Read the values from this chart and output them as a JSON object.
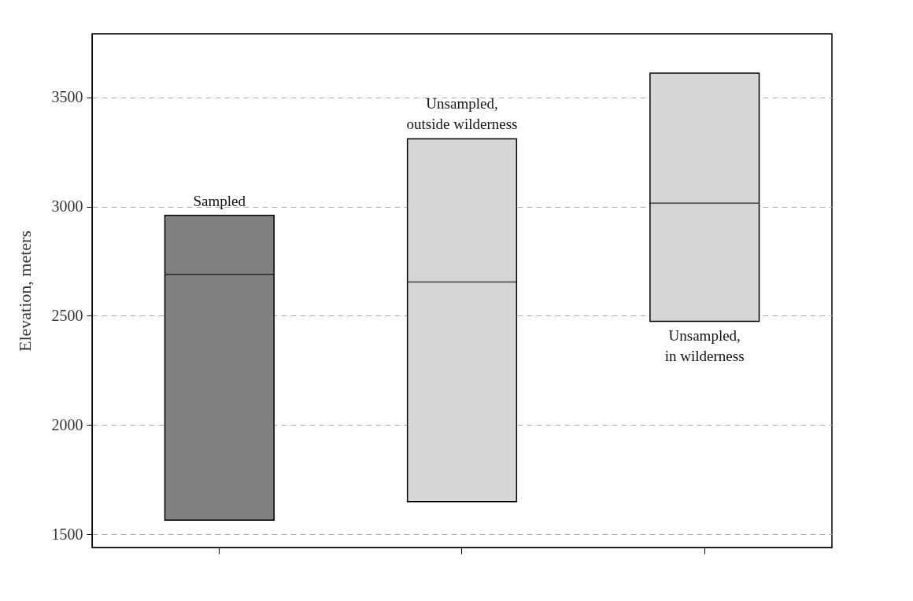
{
  "chart_data": {
    "type": "box",
    "ylabel": "Elevation, meters",
    "categories": [
      null,
      null,
      null
    ],
    "boxes": [
      {
        "low": 1565,
        "q1": 1565,
        "median": 2690,
        "q3": 2960,
        "high": 2960
      },
      {
        "low": 1650,
        "q1": 1650,
        "median": 2655,
        "q3": 3310,
        "high": 3310
      },
      {
        "low": 2475,
        "q1": 2475,
        "median": 3015,
        "q3": 3610,
        "high": 3610
      }
    ],
    "colors": [
      "#808080",
      "#d6d6d6",
      "#d6d6d6"
    ],
    "annotations": [
      "Sampled",
      "Unsampled,\noutside wilderness",
      "Unsampled,\nin wilderness"
    ],
    "ylim": [
      1440,
      3790
    ],
    "yticks": [
      1500,
      2000,
      2500,
      3000,
      3500
    ],
    "grid": "y",
    "tick_labels": "y"
  }
}
